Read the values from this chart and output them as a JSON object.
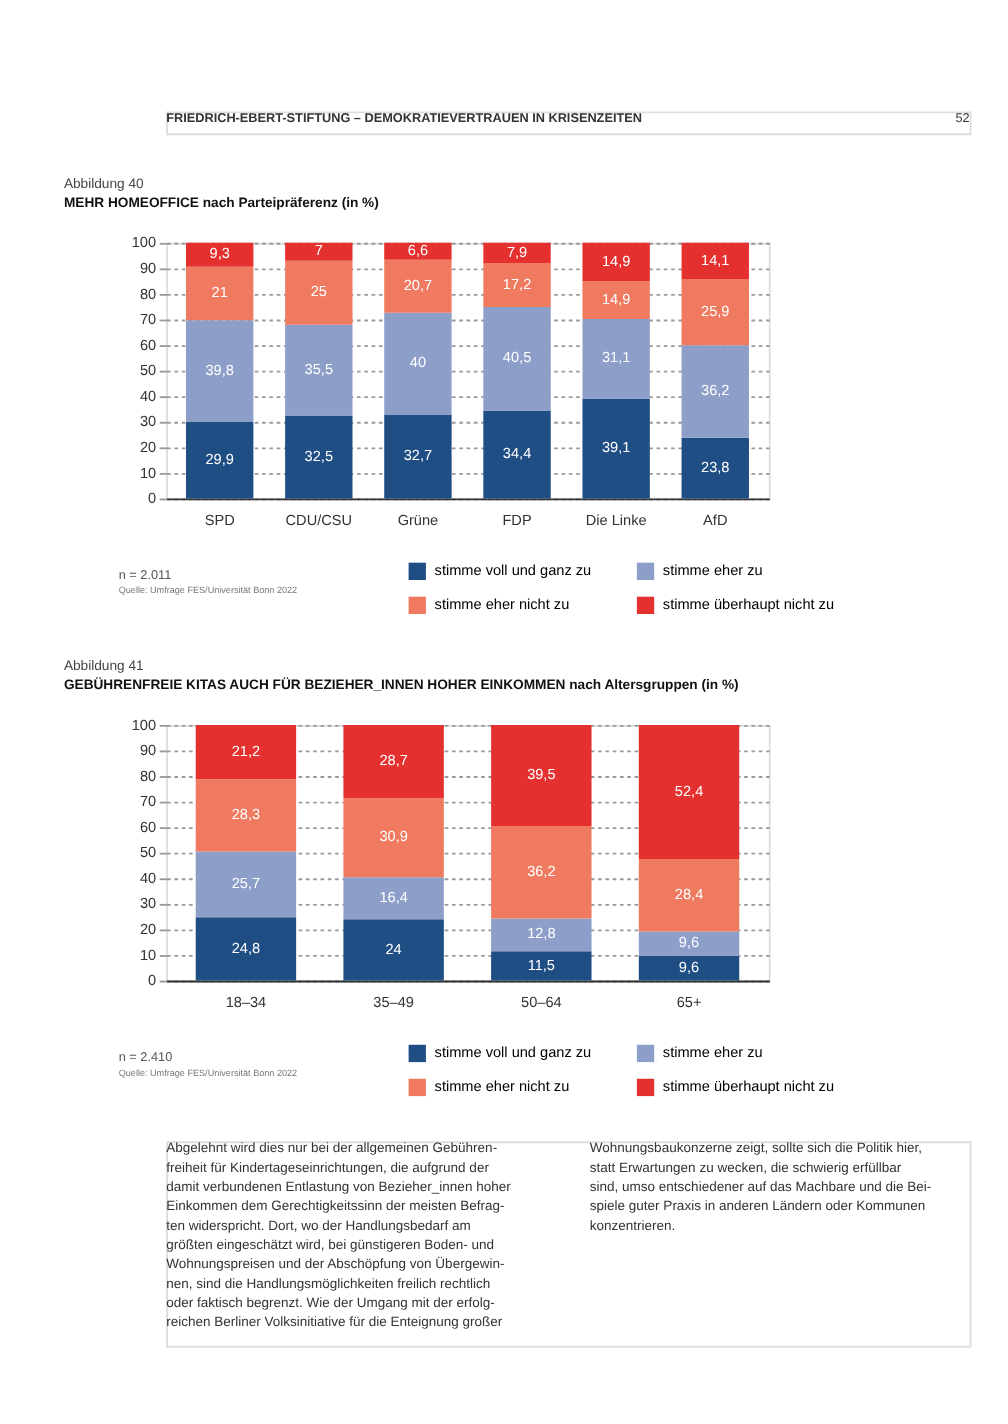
{
  "chart_data": [
    {
      "type": "other",
      "annotations": [
        "FRIEDRICH-EBERT-STIFTUNG – DEMOKRATIEVERTRAUEN IN KRISENZEITEN",
        "52"
      ]
    },
    {
      "type": "bar",
      "subtitle": "Abbildung 40",
      "title": "MEHR HOMEOFFICE nach Parteipräferenz (in %)",
      "stacked": true,
      "categories": [
        "SPD",
        "CDU/CSU",
        "Grüne",
        "FDP",
        "Die Linke",
        "AfD"
      ],
      "series": [
        {
          "name": "stimme voll und ganz zu",
          "color": "#1f4e85",
          "values": [
            29.9,
            32.5,
            32.7,
            34.4,
            39.1,
            23.8
          ],
          "value_labels": [
            "29,9",
            "32,5",
            "32,7",
            "34,4",
            "39,1",
            "23,8"
          ]
        },
        {
          "name": "stimme eher zu",
          "color": "#8d9fc9",
          "values": [
            39.8,
            35.5,
            40,
            40.5,
            31.1,
            36.2
          ],
          "value_labels": [
            "39,8",
            "35,5",
            "40",
            "40,5",
            "31,1",
            "36,2"
          ]
        },
        {
          "name": "stimme eher nicht zu",
          "color": "#f07a60",
          "values": [
            21,
            25,
            20.7,
            17.2,
            14.9,
            25.9
          ],
          "value_labels": [
            "21",
            "25",
            "20,7",
            "17,2",
            "14,9",
            "25,9"
          ]
        },
        {
          "name": "stimme überhaupt nicht zu",
          "color": "#e4302e",
          "values": [
            9.3,
            7,
            6.6,
            7.9,
            14.9,
            14.1
          ],
          "value_labels": [
            "9,3",
            "7",
            "6,6",
            "7,9",
            "14,9",
            "14,1"
          ]
        }
      ],
      "ylim": [
        0,
        100
      ],
      "yticks": [
        0,
        10,
        20,
        30,
        40,
        50,
        60,
        70,
        80,
        90,
        100
      ],
      "grid": "y",
      "legend": "bottom right",
      "annotations": [
        "n = 2.011",
        "Quelle: Umfrage FES/Universität Bonn 2022"
      ]
    },
    {
      "type": "bar",
      "subtitle": "Abbildung 41",
      "title": "GEBÜHRENFREIE KITAS AUCH FÜR BEZIEHER_INNEN HOHER EINKOMMEN nach Altersgruppen (in %)",
      "stacked": true,
      "categories": [
        "18–34",
        "35–49",
        "50–64",
        "65+"
      ],
      "series": [
        {
          "name": "stimme voll und ganz zu",
          "color": "#1f4e85",
          "values": [
            24.8,
            24,
            11.5,
            9.6
          ],
          "value_labels": [
            "24,8",
            "24",
            "11,5",
            "9,6"
          ]
        },
        {
          "name": "stimme eher zu",
          "color": "#8d9fc9",
          "values": [
            25.7,
            16.4,
            12.8,
            9.6
          ],
          "value_labels": [
            "25,7",
            "16,4",
            "12,8",
            "9,6"
          ]
        },
        {
          "name": "stimme eher nicht zu",
          "color": "#f07a60",
          "values": [
            28.3,
            30.9,
            36.2,
            28.4
          ],
          "value_labels": [
            "28,3",
            "30,9",
            "36,2",
            "28,4"
          ]
        },
        {
          "name": "stimme überhaupt nicht zu",
          "color": "#e4302e",
          "values": [
            21.2,
            28.7,
            39.5,
            52.4
          ],
          "value_labels": [
            "21,2",
            "28,7",
            "39,5",
            "52,4"
          ]
        }
      ],
      "ylim": [
        0,
        100
      ],
      "yticks": [
        0,
        10,
        20,
        30,
        40,
        50,
        60,
        70,
        80,
        90,
        100
      ],
      "grid": "y",
      "legend": "bottom right",
      "annotations": [
        "n = 2.410",
        "Quelle: Umfrage FES/Universität Bonn 2022"
      ]
    },
    {
      "type": "other",
      "annotations": [
        "Abgelehnt wird dies nur bei der allgemeinen Gebühren-\nfreiheit für Kindertageseinrichtungen, die aufgrund der\ndamit verbundenen Entlastung von Bezieher_innen hoher\nEinkommen dem Gerechtigkeitssinn der meisten Befrag-\nten widerspricht. Dort, wo der Handlungsbedarf am\ngrößten eingeschätzt wird, bei günstigeren Boden- und\nWohnungspreisen und der Abschöpfung von Übergewin-\nnen, sind die Handlungsmöglichkeiten freilich rechtlich\noder faktisch begrenzt. Wie der Umgang mit der erfolg-\nreichen Berliner Volksinitiative für die Enteignung großer",
        "Wohnungsbaukonzerne zeigt, sollte sich die Politik hier,\nstatt Erwartungen zu wecken, die schwierig erfüllbar\nsind, umso entschiedener auf das Machbare und die Bei-\nspiele guter Praxis in anderen Ländern oder Kommunen\nkonzentrieren."
      ]
    }
  ]
}
